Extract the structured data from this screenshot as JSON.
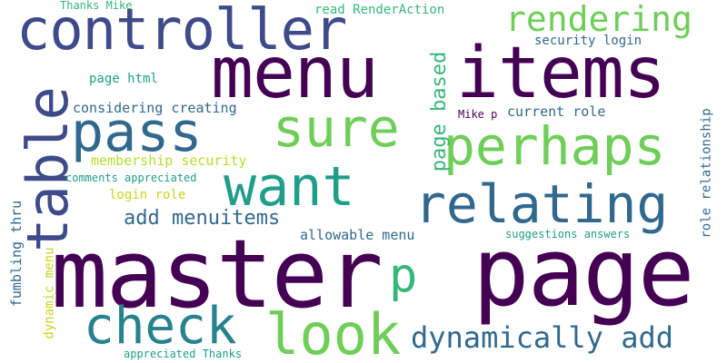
{
  "words": {
    "w01": {
      "text": "master",
      "color": "#440154"
    },
    "w02": {
      "text": "page",
      "color": "#440154"
    },
    "w03": {
      "text": "menu",
      "color": "#440154"
    },
    "w04": {
      "text": "items",
      "color": "#440154"
    },
    "w05": {
      "text": "controller",
      "color": "#3e4a89"
    },
    "w06": {
      "text": "table",
      "color": "#3e4a89"
    },
    "w07": {
      "text": "pass",
      "color": "#31688e"
    },
    "w08": {
      "text": "sure",
      "color": "#6ece58"
    },
    "w09": {
      "text": "perhaps",
      "color": "#6ece58"
    },
    "w10": {
      "text": "want",
      "color": "#1f9e89"
    },
    "w11": {
      "text": "relating",
      "color": "#31688e"
    },
    "w12": {
      "text": "rendering",
      "color": "#6ece58"
    },
    "w13": {
      "text": "check",
      "color": "#26828e"
    },
    "w14": {
      "text": "look",
      "color": "#6ece58"
    },
    "w15": {
      "text": "p",
      "color": "#35b779"
    },
    "w16": {
      "text": "dynamically add",
      "color": "#31688e"
    },
    "w17": {
      "text": "page based",
      "color": "#35b779"
    },
    "w18": {
      "text": "add menuitems",
      "color": "#31688e"
    },
    "w19": {
      "text": "Thanks Mike",
      "color": "#35b779"
    },
    "w20": {
      "text": "read RenderAction",
      "color": "#35b779"
    },
    "w21": {
      "text": "security login",
      "color": "#31688e"
    },
    "w22": {
      "text": "page html",
      "color": "#1f9e89"
    },
    "w23": {
      "text": "considering creating",
      "color": "#31688e"
    },
    "w24": {
      "text": "Mike p",
      "color": "#440154"
    },
    "w25": {
      "text": "current role",
      "color": "#31688e"
    },
    "w26": {
      "text": "membership security",
      "color": "#b5de2b"
    },
    "w27": {
      "text": "comments appreciated",
      "color": "#1f9e89"
    },
    "w28": {
      "text": "login role",
      "color": "#c9d41d"
    },
    "w29": {
      "text": "allowable menu",
      "color": "#31688e"
    },
    "w30": {
      "text": "suggestions answers",
      "color": "#1f9e89"
    },
    "w31": {
      "text": "role relationship",
      "color": "#31688e"
    },
    "w32": {
      "text": "fumbling thru",
      "color": "#31688e"
    },
    "w33": {
      "text": "dynamic menu",
      "color": "#c9d41d"
    },
    "w34": {
      "text": "appreciated Thanks",
      "color": "#1f9e89"
    }
  }
}
